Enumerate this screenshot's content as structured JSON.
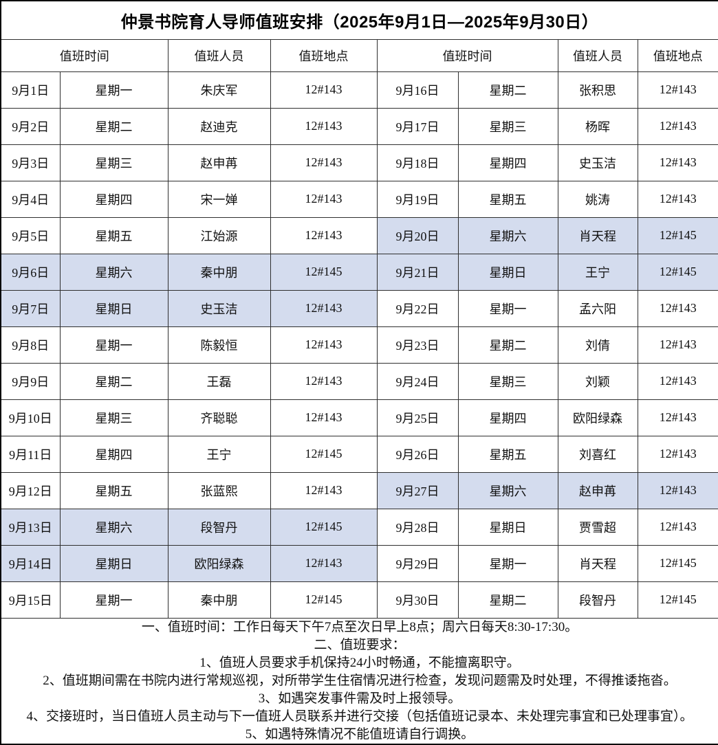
{
  "title": "仲景书院育人导师值班安排（2025年9月1日—2025年9月30日）",
  "header": {
    "time": "值班时间",
    "person": "值班人员",
    "location": "值班地点"
  },
  "rows": [
    {
      "left": {
        "date": "9月1日",
        "weekday": "星期一",
        "person": "朱庆军",
        "location": "12#143",
        "highlight": false
      },
      "right": {
        "date": "9月16日",
        "weekday": "星期二",
        "person": "张积思",
        "location": "12#143",
        "highlight": false
      }
    },
    {
      "left": {
        "date": "9月2日",
        "weekday": "星期二",
        "person": "赵迪克",
        "location": "12#143",
        "highlight": false
      },
      "right": {
        "date": "9月17日",
        "weekday": "星期三",
        "person": "杨晖",
        "location": "12#143",
        "highlight": false
      }
    },
    {
      "left": {
        "date": "9月3日",
        "weekday": "星期三",
        "person": "赵申苒",
        "location": "12#143",
        "highlight": false
      },
      "right": {
        "date": "9月18日",
        "weekday": "星期四",
        "person": "史玉洁",
        "location": "12#143",
        "highlight": false
      }
    },
    {
      "left": {
        "date": "9月4日",
        "weekday": "星期四",
        "person": "宋一婵",
        "location": "12#143",
        "highlight": false
      },
      "right": {
        "date": "9月19日",
        "weekday": "星期五",
        "person": "姚涛",
        "location": "12#143",
        "highlight": false
      }
    },
    {
      "left": {
        "date": "9月5日",
        "weekday": "星期五",
        "person": "江始源",
        "location": "12#143",
        "highlight": false
      },
      "right": {
        "date": "9月20日",
        "weekday": "星期六",
        "person": "肖天程",
        "location": "12#145",
        "highlight": true
      }
    },
    {
      "left": {
        "date": "9月6日",
        "weekday": "星期六",
        "person": "秦中朋",
        "location": "12#145",
        "highlight": true
      },
      "right": {
        "date": "9月21日",
        "weekday": "星期日",
        "person": "王宁",
        "location": "12#145",
        "highlight": true
      }
    },
    {
      "left": {
        "date": "9月7日",
        "weekday": "星期日",
        "person": "史玉洁",
        "location": "12#143",
        "highlight": true
      },
      "right": {
        "date": "9月22日",
        "weekday": "星期一",
        "person": "孟六阳",
        "location": "12#143",
        "highlight": false
      }
    },
    {
      "left": {
        "date": "9月8日",
        "weekday": "星期一",
        "person": "陈毅恒",
        "location": "12#143",
        "highlight": false
      },
      "right": {
        "date": "9月23日",
        "weekday": "星期二",
        "person": "刘倩",
        "location": "12#143",
        "highlight": false
      }
    },
    {
      "left": {
        "date": "9月9日",
        "weekday": "星期二",
        "person": "王磊",
        "location": "12#143",
        "highlight": false
      },
      "right": {
        "date": "9月24日",
        "weekday": "星期三",
        "person": "刘颖",
        "location": "12#143",
        "highlight": false
      }
    },
    {
      "left": {
        "date": "9月10日",
        "weekday": "星期三",
        "person": "齐聪聪",
        "location": "12#143",
        "highlight": false
      },
      "right": {
        "date": "9月25日",
        "weekday": "星期四",
        "person": "欧阳绿森",
        "location": "12#143",
        "highlight": false
      }
    },
    {
      "left": {
        "date": "9月11日",
        "weekday": "星期四",
        "person": "王宁",
        "location": "12#145",
        "highlight": false
      },
      "right": {
        "date": "9月26日",
        "weekday": "星期五",
        "person": "刘喜红",
        "location": "12#143",
        "highlight": false
      }
    },
    {
      "left": {
        "date": "9月12日",
        "weekday": "星期五",
        "person": "张蓝熙",
        "location": "12#143",
        "highlight": false
      },
      "right": {
        "date": "9月27日",
        "weekday": "星期六",
        "person": "赵申苒",
        "location": "12#143",
        "highlight": true
      }
    },
    {
      "left": {
        "date": "9月13日",
        "weekday": "星期六",
        "person": "段智丹",
        "location": "12#145",
        "highlight": true
      },
      "right": {
        "date": "9月28日",
        "weekday": "星期日",
        "person": "贾雪超",
        "location": "12#143",
        "highlight": false
      }
    },
    {
      "left": {
        "date": "9月14日",
        "weekday": "星期日",
        "person": "欧阳绿森",
        "location": "12#143",
        "highlight": true
      },
      "right": {
        "date": "9月29日",
        "weekday": "星期一",
        "person": "肖天程",
        "location": "12#145",
        "highlight": false
      }
    },
    {
      "left": {
        "date": "9月15日",
        "weekday": "星期一",
        "person": "秦中朋",
        "location": "12#145",
        "highlight": false
      },
      "right": {
        "date": "9月30日",
        "weekday": "星期二",
        "person": "段智丹",
        "location": "12#145",
        "highlight": false
      }
    }
  ],
  "notes": [
    "一、值班时间：工作日每天下午7点至次日早上8点；周六日每天8:30-17:30。",
    "二、值班要求：",
    "1、值班人员要求手机保持24小时畅通，不能擅离职守。",
    "2、值班期间需在书院内进行常规巡视，对所带学生住宿情况进行检查，发现问题需及时处理，不得推诿拖沓。",
    "3、如遇突发事件需及时上报领导。",
    "4、交接班时，当日值班人员主动与下一值班人员联系并进行交接（包括值班记录本、未处理完事宜和已处理事宜）。",
    "5、如遇特殊情况不能值班请自行调换。"
  ],
  "colors": {
    "highlight": "#D4DCEE",
    "border": "#2e2e2e",
    "text": "#111111"
  }
}
